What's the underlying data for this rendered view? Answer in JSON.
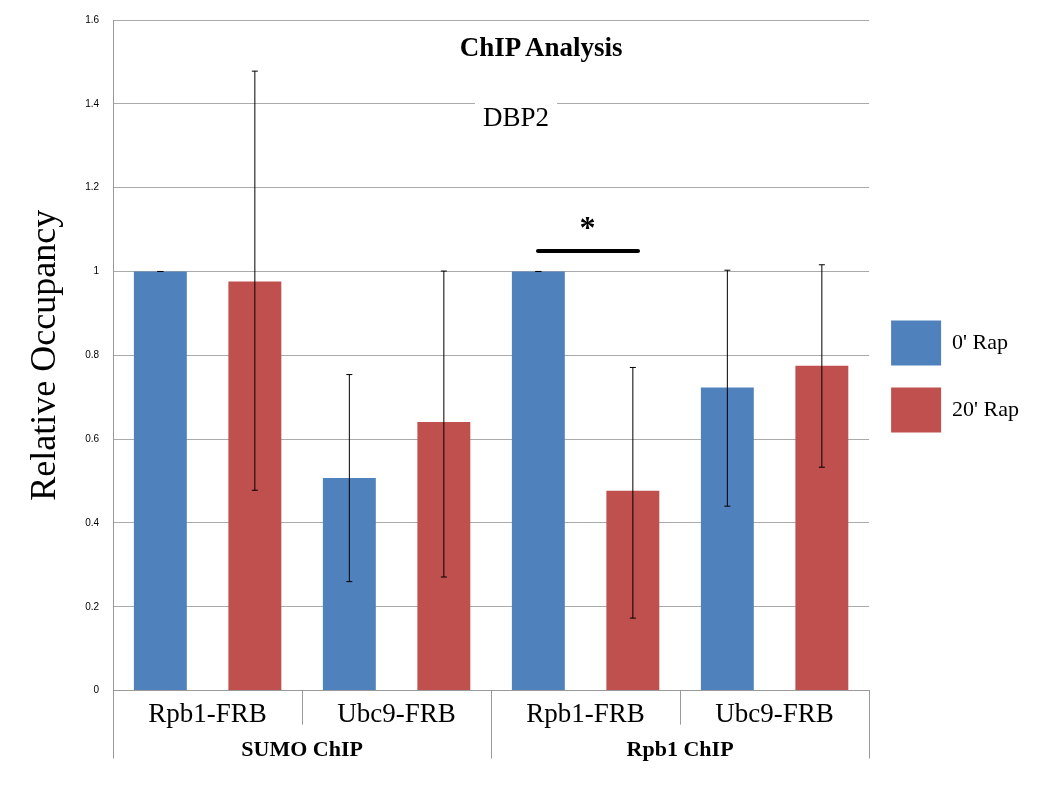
{
  "chart_data": {
    "type": "bar",
    "title": "ChIP Analysis",
    "subtitle": "DBP2",
    "ylabel": "Relative Occupancy",
    "categories": [
      "Rpb1-FRB",
      "Ubc9-FRB",
      "Rpb1-FRB",
      "Ubc9-FRB"
    ],
    "series": [
      {
        "name": "0' Rap",
        "color": "#4f81bd",
        "values": [
          1,
          0.507,
          1,
          0.723
        ],
        "errors": [
          0,
          [
            0.26,
            0.754
          ],
          0,
          [
            0.44,
            1.003
          ]
        ]
      },
      {
        "name": "20' Rap",
        "color": "#c0504d",
        "values": [
          0.976,
          0.641,
          0.477,
          0.775
        ],
        "errors": [
          [
            0.478,
            1.478
          ],
          [
            0.271,
            1.001
          ],
          [
            0.173,
            0.771
          ],
          [
            0.533,
            1.016
          ]
        ]
      }
    ],
    "ylim": [
      0,
      1.6
    ],
    "yticks": [
      0,
      0.2,
      0.4,
      0.6,
      0.8,
      1,
      1.2,
      1.4,
      1.6
    ],
    "grid": "y",
    "legend": "right",
    "annotations": [
      "*",
      "SUMO ChIP",
      "Rpb1 ChIP"
    ]
  }
}
